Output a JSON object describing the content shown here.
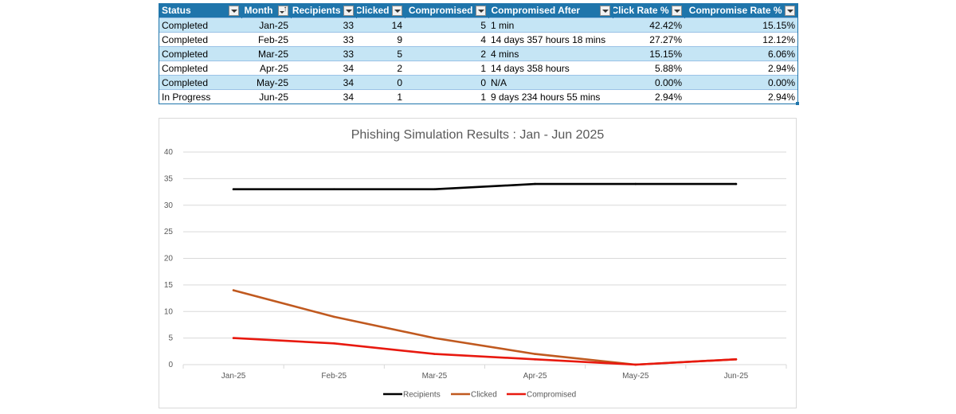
{
  "table": {
    "headers": [
      {
        "label": "Status",
        "align": "left",
        "button": "dropdown"
      },
      {
        "label": "Month",
        "align": "left",
        "button": "sort"
      },
      {
        "label": "Recipients",
        "align": "right",
        "button": "dropdown"
      },
      {
        "label": "Clicked",
        "align": "right",
        "button": "dropdown"
      },
      {
        "label": "Compromised",
        "align": "right",
        "button": "dropdown"
      },
      {
        "label": "Compromised After",
        "align": "left",
        "button": "dropdown"
      },
      {
        "label": "Click Rate %",
        "align": "right",
        "button": "dropdown"
      },
      {
        "label": "Compromise Rate %",
        "align": "right",
        "button": "dropdown"
      }
    ],
    "rows": [
      [
        "Completed",
        "Jan-25",
        "33",
        "14",
        "5",
        "1 min",
        "42.42%",
        "15.15%"
      ],
      [
        "Completed",
        "Feb-25",
        "33",
        "9",
        "4",
        "14 days 357 hours 18 mins",
        "27.27%",
        "12.12%"
      ],
      [
        "Completed",
        "Mar-25",
        "33",
        "5",
        "2",
        "4 mins",
        "15.15%",
        "6.06%"
      ],
      [
        "Completed",
        "Apr-25",
        "34",
        "2",
        "1",
        "14 days 358 hours",
        "5.88%",
        "2.94%"
      ],
      [
        "Completed",
        "May-25",
        "34",
        "0",
        "0",
        "N/A",
        "0.00%",
        "0.00%"
      ],
      [
        "In Progress",
        "Jun-25",
        "34",
        "1",
        "1",
        "9 days 234 hours 55 mins",
        "2.94%",
        "2.94%"
      ]
    ],
    "colors": {
      "header_bg": "#1f75ab",
      "band_bg": "#c5e5f5"
    }
  },
  "chart_data": {
    "type": "line",
    "title": "Phishing Simulation Results : Jan - Jun 2025",
    "categories": [
      "Jan-25",
      "Feb-25",
      "Mar-25",
      "Apr-25",
      "May-25",
      "Jun-25"
    ],
    "series": [
      {
        "name": "Recipients",
        "values": [
          33,
          33,
          33,
          34,
          34,
          34
        ],
        "color": "#000000"
      },
      {
        "name": "Clicked",
        "values": [
          14,
          9,
          5,
          2,
          0,
          1
        ],
        "color": "#c0591f"
      },
      {
        "name": "Compromised",
        "values": [
          5,
          4,
          2,
          1,
          0,
          1
        ],
        "color": "#e8190f"
      }
    ],
    "ylim": [
      0,
      40
    ],
    "yticks": [
      0,
      5,
      10,
      15,
      20,
      25,
      30,
      35,
      40
    ],
    "grid": true,
    "legend": "bottom",
    "xlabel": "",
    "ylabel": ""
  }
}
